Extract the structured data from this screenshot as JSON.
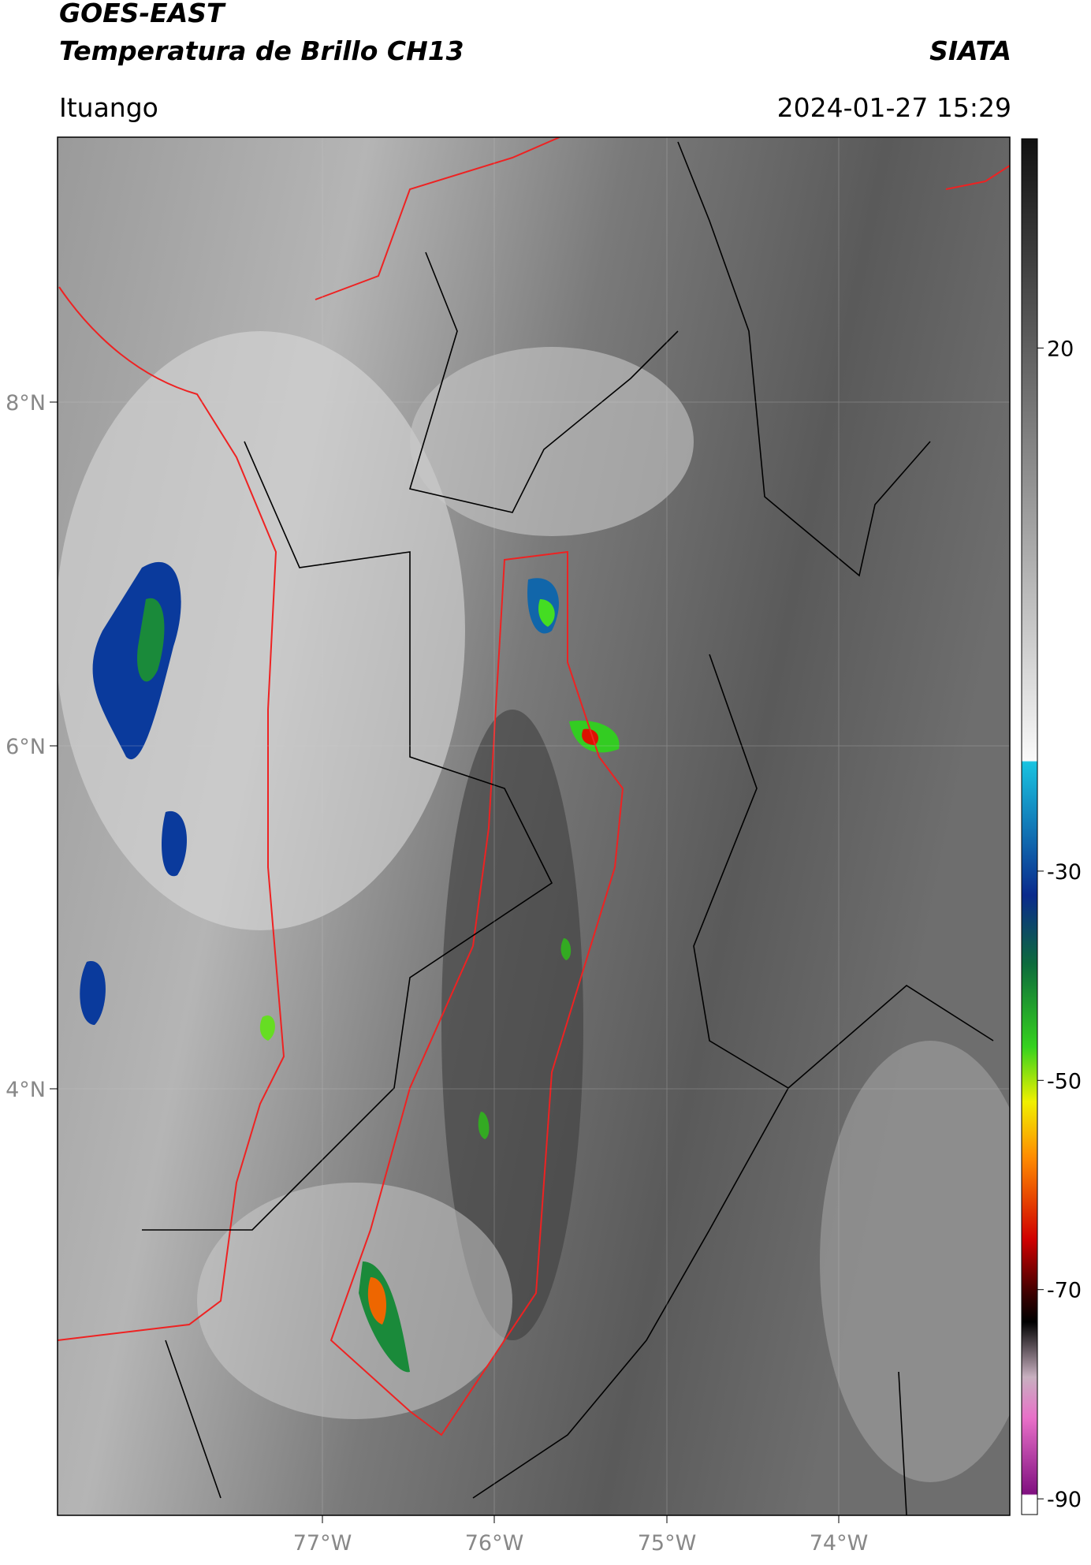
{
  "header": {
    "satellite": "GOES-EAST",
    "product": "Temperatura de Brillo CH13",
    "organization": "SIATA",
    "location": "Ituango",
    "timestamp": "2024-01-27 15:29"
  },
  "map": {
    "lat_labels": [
      "8°N",
      "6°N",
      "4°N"
    ],
    "lon_labels": [
      "77°W",
      "76°W",
      "75°W",
      "74°W"
    ]
  },
  "colorbar": {
    "range": [
      -91.5,
      40
    ],
    "ticks": [
      20,
      -30,
      -50,
      -70,
      -90
    ]
  }
}
